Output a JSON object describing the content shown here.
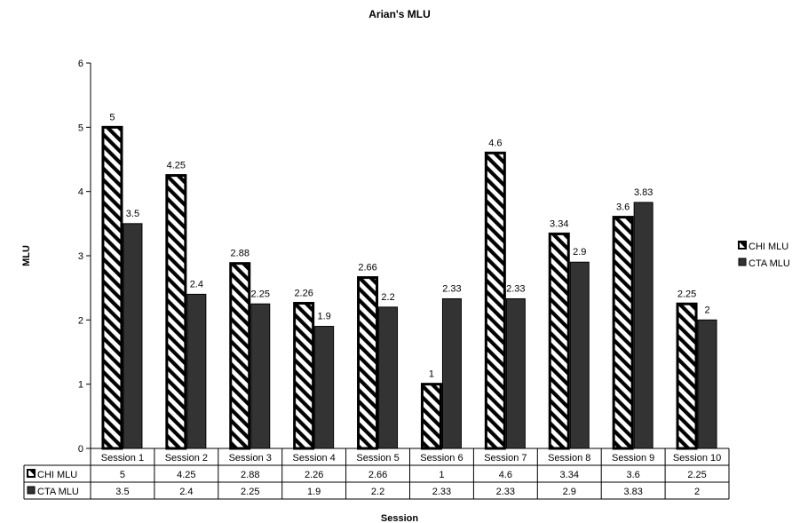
{
  "chart_data": {
    "type": "bar",
    "title": "Arian's MLU",
    "xlabel": "Session",
    "ylabel": "MLU",
    "ylim": [
      0,
      6
    ],
    "yticks": [
      "0",
      "1",
      "2",
      "3",
      "4",
      "5",
      "6"
    ],
    "grid": false,
    "legend_position": "right",
    "data_table": true,
    "categories": [
      "Session 1",
      "Session 2",
      "Session 3",
      "Session 4",
      "Session 5",
      "Session 6",
      "Session 7",
      "Session 8",
      "Session 9",
      "Session 10"
    ],
    "series": [
      {
        "name": "CHI MLU",
        "values": [
          5,
          4.25,
          2.88,
          2.26,
          2.66,
          1,
          4.6,
          3.34,
          3.6,
          2.25
        ],
        "labels": [
          "5",
          "4.25",
          "2.88",
          "2.26",
          "2.66",
          "1",
          "4.6",
          "3.34",
          "3.6",
          "2.25"
        ],
        "fill": "hatched",
        "color": "#000000"
      },
      {
        "name": "CTA MLU",
        "values": [
          3.5,
          2.4,
          2.25,
          1.9,
          2.2,
          2.33,
          2.33,
          2.9,
          3.83,
          2
        ],
        "labels": [
          "3.5",
          "2.4",
          "2.25",
          "1.9",
          "2.2",
          "2.33",
          "2.33",
          "2.9",
          "3.83",
          "2"
        ],
        "fill": "solid",
        "color": "#333333"
      }
    ]
  }
}
